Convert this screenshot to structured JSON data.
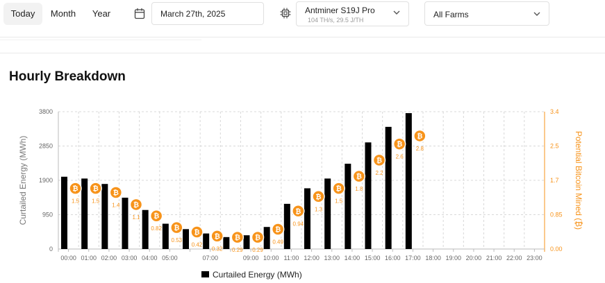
{
  "filters": {
    "periods": [
      "Today",
      "Month",
      "Year"
    ],
    "active_period": "Today",
    "date": "March 27th, 2025",
    "miner": {
      "name": "Antminer S19J Pro",
      "spec": "104 TH/s, 29.5 J/TH"
    },
    "farm": "All Farms"
  },
  "section_title": "Hourly Breakdown",
  "colors": {
    "bar": "#000000",
    "accent": "#f7931a",
    "grid": "#d8d8d8"
  },
  "chart_data": {
    "type": "bar",
    "categories": [
      "00:00",
      "01:00",
      "02:00",
      "03:00",
      "04:00",
      "05:00",
      "06:00",
      "07:00",
      "08:00",
      "09:00",
      "10:00",
      "11:00",
      "12:00",
      "13:00",
      "14:00",
      "15:00",
      "16:00",
      "17:00",
      "18:00",
      "19:00",
      "20:00",
      "21:00",
      "22:00",
      "23:00"
    ],
    "x_tick_labels": [
      "00:00",
      "01:00",
      "02:00",
      "03:00",
      "04:00",
      "05:00",
      "",
      "07:00",
      "",
      "09:00",
      "10:00",
      "11:00",
      "12:00",
      "13:00",
      "14:00",
      "15:00",
      "16:00",
      "17:00",
      "18:00",
      "19:00",
      "20:00",
      "21:00",
      "22:00",
      "23:00"
    ],
    "series": [
      {
        "name": "Curtailed Energy (MWh)",
        "type": "bar",
        "axis": "left",
        "values": [
          2000,
          1950,
          1800,
          1420,
          1080,
          700,
          550,
          430,
          330,
          380,
          610,
          1250,
          1680,
          1950,
          2360,
          2950,
          3380,
          3760,
          null,
          null,
          null,
          null,
          null,
          null
        ]
      },
      {
        "name": "Potential Bitcoin Mined (₿)",
        "type": "marker",
        "axis": "right",
        "values": [
          1.5,
          1.5,
          1.4,
          1.1,
          0.82,
          0.53,
          0.42,
          0.32,
          0.29,
          0.29,
          0.49,
          0.94,
          1.3,
          1.5,
          1.8,
          2.2,
          2.6,
          2.8,
          null,
          null,
          null,
          null,
          null,
          null
        ],
        "labels": [
          "1.5",
          "1.5",
          "1.4",
          "1.1",
          "0.82",
          "0.53",
          "0.42",
          "0.32",
          "0.29",
          "0.29",
          "0.49",
          "0.94",
          "1.3",
          "1.5",
          "1.8",
          "2.2",
          "2.6",
          "2.8",
          "",
          "",
          "",
          "",
          "",
          ""
        ]
      }
    ],
    "ylabel": "Curtailed Energy (MWh)",
    "ylabel_right": "Potential Bitcoin Mined (₿)",
    "ylim": [
      0,
      3800
    ],
    "yticks": [
      "0",
      "950",
      "1900",
      "2850",
      "3800"
    ],
    "ylim_right": [
      0,
      3.4
    ],
    "yticks_right": [
      "0.00",
      "0.85",
      "1.7",
      "2.5",
      "3.4"
    ],
    "legend": "Curtailed Energy (MWh)",
    "legend_position": "bottom-center",
    "grid": true
  }
}
